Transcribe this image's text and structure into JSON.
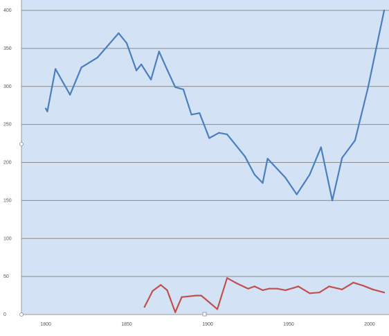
{
  "chart_data": {
    "type": "line",
    "title": "",
    "xlabel": "",
    "ylabel": "",
    "xlim": [
      1785,
      2012
    ],
    "ylim": [
      0,
      400
    ],
    "x_ticks": [
      1800,
      1850,
      1900,
      1950,
      2000
    ],
    "x_tick_labels": [
      "1800",
      "1850",
      "1900",
      "1950",
      "2000"
    ],
    "y_ticks": [
      0,
      50,
      100,
      150,
      200,
      250,
      300,
      350,
      400
    ],
    "y_tick_labels": [
      "0",
      "50",
      "100",
      "150",
      "200",
      "250",
      "300",
      "350",
      "400"
    ],
    "grid": "horizontal",
    "legend": "none",
    "colors": {
      "plot_background": "#d3e2f4",
      "gridline": "#8a8a8a",
      "axis": "#9a9a9a",
      "tick_label": "#555555"
    },
    "series": [
      {
        "color": "#4a7ebf",
        "x": [
          1800,
          1801,
          1806,
          1815,
          1822,
          1832,
          1845,
          1850,
          1856,
          1859,
          1865,
          1870,
          1875,
          1880,
          1885,
          1890,
          1895,
          1901,
          1907,
          1912,
          1923,
          1929,
          1934,
          1937,
          1948,
          1955,
          1963,
          1970,
          1977,
          1983,
          1991,
          1999,
          2009
        ],
        "y": [
          271,
          267,
          323,
          289,
          325,
          338,
          370,
          357,
          321,
          329,
          309,
          346,
          322,
          299,
          296,
          263,
          265,
          232,
          239,
          237,
          208,
          184,
          173,
          205,
          180,
          158,
          184,
          220,
          150,
          206,
          229,
          298,
          400
        ]
      },
      {
        "color": "#c0504d",
        "x": [
          1861,
          1866,
          1871,
          1875,
          1880,
          1884,
          1893,
          1896,
          1901,
          1906,
          1912,
          1918,
          1925,
          1929,
          1934,
          1938,
          1943,
          1948,
          1953,
          1956,
          1963,
          1969,
          1975,
          1983,
          1990,
          1996,
          2002,
          2009
        ],
        "y": [
          10,
          31,
          39,
          32,
          3,
          23,
          25,
          25,
          16,
          7,
          48,
          41,
          34,
          37,
          32,
          34,
          34,
          32,
          35,
          37,
          28,
          29,
          37,
          33,
          42,
          38,
          33,
          29
        ]
      }
    ]
  }
}
